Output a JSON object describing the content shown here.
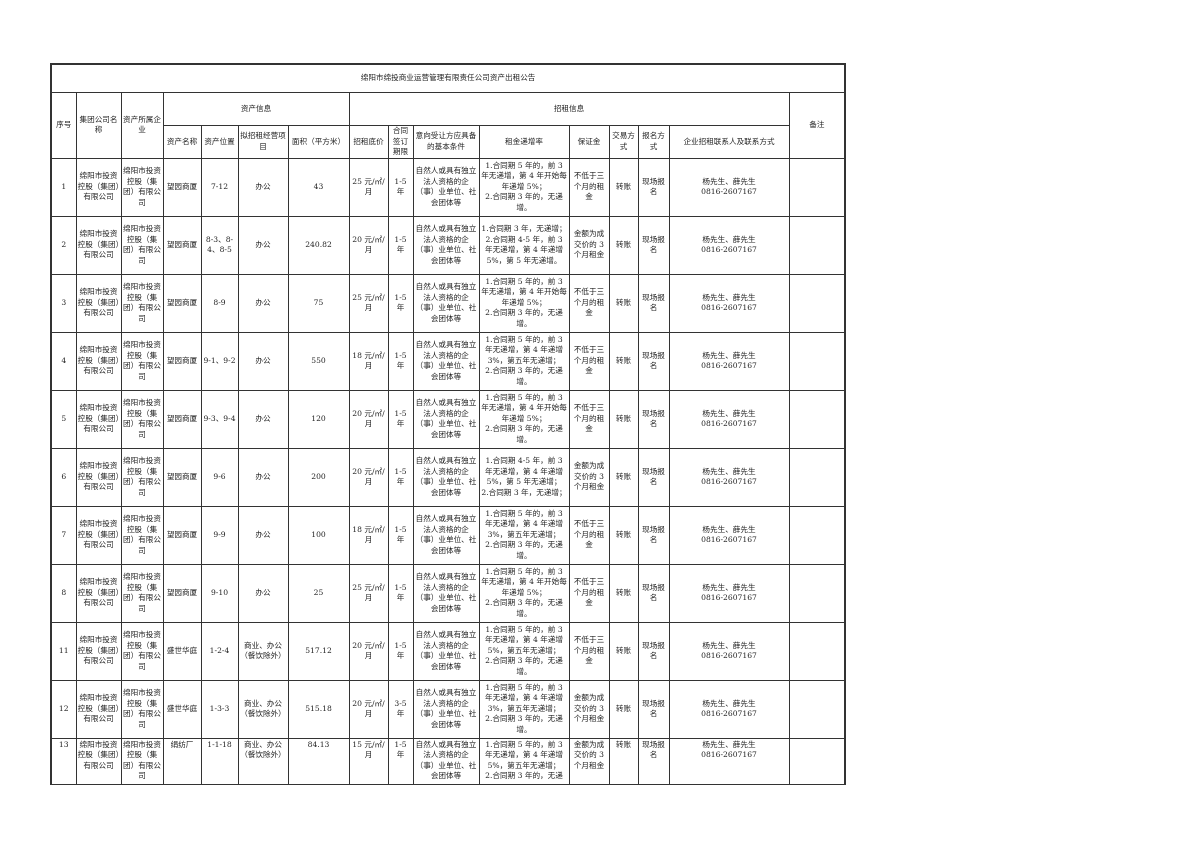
{
  "title": "绵阳市绵投商业运营管理有限责任公司资产出租公告",
  "headers": {
    "seq": "序号",
    "group": "集团公司名称",
    "owner": "资产所属企业",
    "asset_info": "资产信息",
    "lease_info": "招租信息",
    "remark": "备注",
    "asset_name": "资产名称",
    "asset_location": "资产位置",
    "business": "拟招租经营项目",
    "area": "面积（平方米）",
    "base_price": "招租底价",
    "term": "合同签订期限",
    "conditions": "意向受让方应具备的基本条件",
    "increase": "租金递增率",
    "deposit": "保证金",
    "trade": "交易方式",
    "signup": "报名方式",
    "contact": "企业招租联系人及联系方式"
  },
  "rows": [
    {
      "seq": "1",
      "group": "绵阳市投资控股（集团）有限公司",
      "owner": "绵阳市投资控股（集团）有限公司",
      "name": "望园商厦",
      "loc": "7-12",
      "biz": "办公",
      "area": "43",
      "price": "25 元/㎡/月",
      "term": "1-5 年",
      "cond": "自然人或具有独立法人资格的企（事）业单位、社会团体等",
      "inc": "1.合同期 5 年的，前 3 年无递增，第 4 年开始每年递增 5%；\n2.合同期 3 年的，无递增。",
      "dep": "不低于三个月的租金",
      "trade": "转账",
      "signup": "现场报名",
      "contact": "杨先生、薛先生\n0816-2607167",
      "remark": ""
    },
    {
      "seq": "2",
      "group": "绵阳市投资控股（集团）有限公司",
      "owner": "绵阳市投资控股（集团）有限公司",
      "name": "望园商厦",
      "loc": "8-3、8-4、8-5",
      "biz": "办公",
      "area": "240.82",
      "price": "20 元/㎡/月",
      "term": "1-5 年",
      "cond": "自然人或具有独立法人资格的企（事）业单位、社会团体等",
      "inc": "1.合同期 3 年，无递增；2.合同期 4-5 年，前 3 年无递增，第 4 年递增 5%，第 5 年无递增。",
      "dep": "金额为成交价的 3 个月租金",
      "trade": "转账",
      "signup": "现场报名",
      "contact": "杨先生、薛先生\n0816-2607167",
      "remark": ""
    },
    {
      "seq": "3",
      "group": "绵阳市投资控股（集团）有限公司",
      "owner": "绵阳市投资控股（集团）有限公司",
      "name": "望园商厦",
      "loc": "8-9",
      "biz": "办公",
      "area": "75",
      "price": "25 元/㎡/月",
      "term": "1-5 年",
      "cond": "自然人或具有独立法人资格的企（事）业单位、社会团体等",
      "inc": "1.合同期 5 年的，前 3 年无递增，第 4 年开始每年递增 5%；\n2.合同期 3 年的，无递增。",
      "dep": "不低于三个月的租金",
      "trade": "转账",
      "signup": "现场报名",
      "contact": "杨先生、薛先生\n0816-2607167",
      "remark": ""
    },
    {
      "seq": "4",
      "group": "绵阳市投资控股（集团）有限公司",
      "owner": "绵阳市投资控股（集团）有限公司",
      "name": "望园商厦",
      "loc": "9-1、9-2",
      "biz": "办公",
      "area": "550",
      "price": "18 元/㎡/月",
      "term": "1-5 年",
      "cond": "自然人或具有独立法人资格的企（事）业单位、社会团体等",
      "inc": "1.合同期 5 年的，前 3 年无递增，第 4 年递增 3%，第五年无递增；\n2.合同期 3 年的，无递增。",
      "dep": "不低于三个月的租金",
      "trade": "转账",
      "signup": "现场报名",
      "contact": "杨先生、薛先生\n0816-2607167",
      "remark": ""
    },
    {
      "seq": "5",
      "group": "绵阳市投资控股（集团）有限公司",
      "owner": "绵阳市投资控股（集团）有限公司",
      "name": "望园商厦",
      "loc": "9-3、9-4",
      "biz": "办公",
      "area": "120",
      "price": "20 元/㎡/月",
      "term": "1-5 年",
      "cond": "自然人或具有独立法人资格的企（事）业单位、社会团体等",
      "inc": "1.合同期 5 年的，前 3 年无递增，第 4 年开始每年递增 5%；\n2.合同期 3 年的，无递增。",
      "dep": "不低于三个月的租金",
      "trade": "转账",
      "signup": "现场报名",
      "contact": "杨先生、薛先生\n0816-2607167",
      "remark": ""
    },
    {
      "seq": "6",
      "group": "绵阳市投资控股（集团）有限公司",
      "owner": "绵阳市投资控股（集团）有限公司",
      "name": "望园商厦",
      "loc": "9-6",
      "biz": "办公",
      "area": "200",
      "price": "20 元/㎡/月",
      "term": "1-5 年",
      "cond": "自然人或具有独立法人资格的企（事）业单位、社会团体等",
      "inc": "1.合同期 4-5 年，前 3 年无递增，第 4 年递增 5%，第 5 年无递增；\n2.合同期 3 年，无递增；",
      "dep": "金额为成交价的 3 个月租金",
      "trade": "转账",
      "signup": "现场报名",
      "contact": "杨先生、薛先生\n0816-2607167",
      "remark": ""
    },
    {
      "seq": "7",
      "group": "绵阳市投资控股（集团）有限公司",
      "owner": "绵阳市投资控股（集团）有限公司",
      "name": "望园商厦",
      "loc": "9-9",
      "biz": "办公",
      "area": "100",
      "price": "18 元/㎡/月",
      "term": "1-5 年",
      "cond": "自然人或具有独立法人资格的企（事）业单位、社会团体等",
      "inc": "1.合同期 5 年的，前 3 年无递增，第 4 年递增 3%，第五年无递增；\n2.合同期 3 年的，无递增。",
      "dep": "不低于三个月的租金",
      "trade": "转账",
      "signup": "现场报名",
      "contact": "杨先生、薛先生\n0816-2607167",
      "remark": ""
    },
    {
      "seq": "8",
      "group": "绵阳市投资控股（集团）有限公司",
      "owner": "绵阳市投资控股（集团）有限公司",
      "name": "望园商厦",
      "loc": "9-10",
      "biz": "办公",
      "area": "25",
      "price": "25 元/㎡/月",
      "term": "1-5 年",
      "cond": "自然人或具有独立法人资格的企（事）业单位、社会团体等",
      "inc": "1.合同期 5 年的，前 3 年无递增，第 4 年开始每年递增 5%；\n2.合同期 3 年的，无递增。",
      "dep": "不低于三个月的租金",
      "trade": "转账",
      "signup": "现场报名",
      "contact": "杨先生、薛先生\n0816-2607167",
      "remark": ""
    },
    {
      "seq": "11",
      "group": "绵阳市投资控股（集团）有限公司",
      "owner": "绵阳市投资控股（集团）有限公司",
      "name": "盛世华庭",
      "loc": "1-2-4",
      "biz": "商业、办公（餐饮除外）",
      "area": "517.12",
      "price": "20 元/㎡/月",
      "term": "1-5 年",
      "cond": "自然人或具有独立法人资格的企（事）业单位、社会团体等",
      "inc": "1.合同期 5 年的，前 3 年无递增，第 4 年递增 5%，第五年无递增；\n2.合同期 3 年的，无递增。",
      "dep": "不低于三个月的租金",
      "trade": "转账",
      "signup": "现场报名",
      "contact": "杨先生、薛先生\n0816-2607167",
      "remark": ""
    },
    {
      "seq": "12",
      "group": "绵阳市投资控股（集团）有限公司",
      "owner": "绵阳市投资控股（集团）有限公司",
      "name": "盛世华庭",
      "loc": "1-3-3",
      "biz": "商业、办公（餐饮除外）",
      "area": "515.18",
      "price": "20 元/㎡/月",
      "term": "3-5 年",
      "cond": "自然人或具有独立法人资格的企（事）业单位、社会团体等",
      "inc": "1.合同期 5 年的，前 3 年无递增，第 4 年递增 3%，第五年无递增；\n2.合同期 3 年的，无递增。",
      "dep": "金额为成交价的 3 个月租金",
      "trade": "转账",
      "signup": "现场报名",
      "contact": "杨先生、薛先生\n0816-2607167",
      "remark": ""
    },
    {
      "seq": "13",
      "group": "绵阳市投资控股（集团）有限公司",
      "owner": "绵阳市投资控股（集团）有限公司",
      "name": "绢纺厂",
      "loc": "1-1-18",
      "biz": "商业、办公（餐饮除外）",
      "area": "84.13",
      "price": "15 元/㎡/月",
      "term": "1-5 年",
      "cond": "自然人或具有独立法人资格的企（事）业单位、社会团体等",
      "inc": "1.合同期 5 年的，前 3 年无递增，第 4 年递增 5%，第五年无递增；\n2.合同期 3 年的，无递",
      "dep": "金额为成交价的 3 个月租金",
      "trade": "转账",
      "signup": "现场报名",
      "contact": "杨先生、薛先生\n0816-2607167",
      "remark": ""
    }
  ]
}
